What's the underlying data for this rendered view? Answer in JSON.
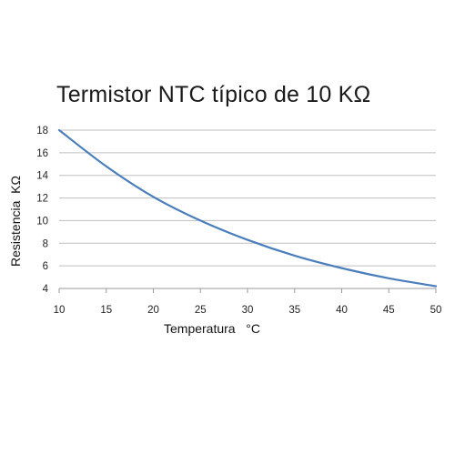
{
  "chart_data": {
    "type": "line",
    "title": "Termistor NTC típico de 10 KΩ",
    "xlabel": "Temperatura   °C",
    "ylabel": "Resistencia  KΩ",
    "xlim": [
      10,
      50
    ],
    "ylim": [
      4,
      18
    ],
    "x_ticks": [
      10,
      15,
      20,
      25,
      30,
      35,
      40,
      45,
      50
    ],
    "y_ticks": [
      4,
      6,
      8,
      10,
      12,
      14,
      16,
      18
    ],
    "grid": "horizontal",
    "legend": "none",
    "series": [
      {
        "color": "#4a7ebb",
        "x": [
          10,
          15,
          20,
          25,
          30,
          35,
          40,
          45,
          50
        ],
        "y": [
          18.0,
          14.8,
          12.1,
          10.0,
          8.3,
          6.9,
          5.8,
          4.9,
          4.2
        ]
      }
    ]
  }
}
